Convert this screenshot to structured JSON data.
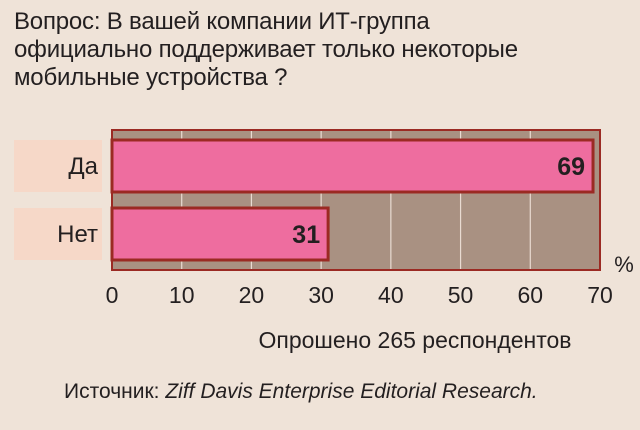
{
  "question_lines": [
    "Вопрос: В вашей компании ИТ-группа",
    "официально поддерживает только некоторые",
    "мобильные устройства ?"
  ],
  "source_prefix": "Источник: ",
  "source_name": "Ziff Davis Enterprise Editorial Research.",
  "colors": {
    "background": "#efe3d8",
    "plot_background": "#a99182",
    "bar_fill": "#ee6d9f",
    "bar_outline": "#9b2a23",
    "label_box": "#f6d8c8",
    "grid": "#e9dbd2"
  },
  "chart_data": {
    "type": "bar",
    "orientation": "horizontal",
    "categories": [
      "Да",
      "Нет"
    ],
    "values": [
      69,
      31
    ],
    "value_labels": [
      "69",
      "31"
    ],
    "xlim": [
      0,
      70
    ],
    "xticks": [
      0,
      10,
      20,
      30,
      40,
      50,
      60,
      70
    ],
    "unit_label": "%",
    "xlabel": "Опрошено 265 респондентов",
    "grid": true
  }
}
